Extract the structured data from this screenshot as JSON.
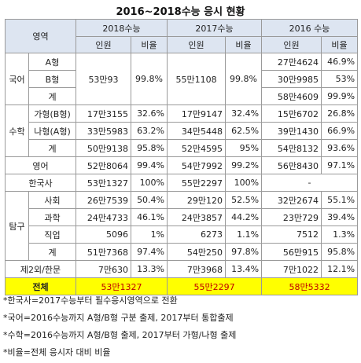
{
  "title": "2016~2018수능 응시 현황",
  "header": {
    "area": "영역",
    "years": [
      "2018수능",
      "2017수능",
      "2016 수능"
    ],
    "count": "인원",
    "ratio": "비율"
  },
  "korean": {
    "label": "국어",
    "types": [
      "A형",
      "B형",
      "계"
    ],
    "y2018": {
      "count": "53만93",
      "ratio": "99.8%"
    },
    "y2017": {
      "count": "55만1108",
      "ratio": "99.8%"
    },
    "y2016": [
      {
        "count": "27만4624",
        "ratio": "46.9%"
      },
      {
        "count": "30만9985",
        "ratio": "53%"
      },
      {
        "count": "58만4609",
        "ratio": "99.9%"
      }
    ]
  },
  "math": {
    "label": "수학",
    "rows": [
      {
        "sub": "가형(B형)",
        "c2018": "17만3155",
        "r2018": "32.6%",
        "c2017": "17만9147",
        "r2017": "32.4%",
        "c2016": "15만6702",
        "r2016": "26.8%"
      },
      {
        "sub": "나형(A형)",
        "c2018": "33만5983",
        "r2018": "63.2%",
        "c2017": "34만5448",
        "r2017": "62.5%",
        "c2016": "39만1430",
        "r2016": "66.9%"
      },
      {
        "sub": "계",
        "c2018": "50만9138",
        "r2018": "95.8%",
        "c2017": "52만4595",
        "r2017": "95%",
        "c2016": "54만8132",
        "r2016": "93.6%"
      }
    ]
  },
  "english": {
    "label": "영어",
    "c2018": "52만8064",
    "r2018": "99.4%",
    "c2017": "54만7992",
    "r2017": "99.2%",
    "c2016": "56만8430",
    "r2016": "97.1%"
  },
  "history": {
    "label": "한국사",
    "c2018": "53만1327",
    "r2018": "100%",
    "c2017": "55만2297",
    "r2017": "100%",
    "c2016": "-"
  },
  "inquiry": {
    "label": "탐구",
    "rows": [
      {
        "sub": "사회",
        "c2018": "26만7539",
        "r2018": "50.4%",
        "c2017": "29만120",
        "r2017": "52.5%",
        "c2016": "32만2674",
        "r2016": "55.1%"
      },
      {
        "sub": "과학",
        "c2018": "24만4733",
        "r2018": "46.1%",
        "c2017": "24만3857",
        "r2017": "44.2%",
        "c2016": "23만729",
        "r2016": "39.4%"
      },
      {
        "sub": "직업",
        "c2018": "5096",
        "r2018": "1%",
        "c2017": "6273",
        "r2017": "1.1%",
        "c2016": "7512",
        "r2016": "1.3%"
      },
      {
        "sub": "계",
        "c2018": "51만7368",
        "r2018": "97.4%",
        "c2017": "54만250",
        "r2017": "97.8%",
        "c2016": "56만915",
        "r2016": "95.8%"
      }
    ]
  },
  "foreign": {
    "label": "제2외/한문",
    "c2018": "7만630",
    "r2018": "13.3%",
    "c2017": "7만3968",
    "r2017": "13.4%",
    "c2016": "7만1022",
    "r2016": "12.1%"
  },
  "total": {
    "label": "전체",
    "c2018": "53만1327",
    "c2017": "55만2297",
    "c2016": "58만5332"
  },
  "notes": [
    "*한국사=2017수능부터 필수응시영역으로 전환",
    "*국어=2016수능까지 A형/B형 구분 출제, 2017부터 통합출제",
    "*수학=2016수능까지 A형/B형 출제, 2017부터 가형/나형 출제",
    "*비율=전체 응시자 대비 비율"
  ]
}
